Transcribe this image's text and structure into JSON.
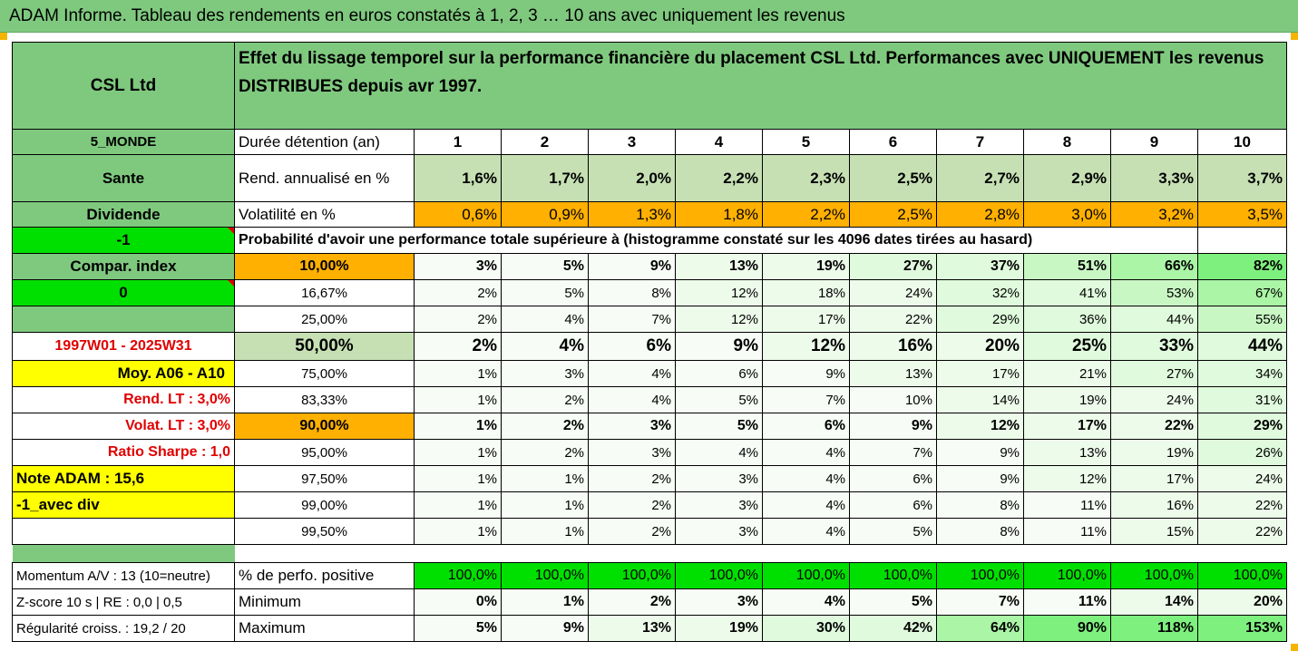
{
  "title": "ADAM Informe. Tableau des rendements en euros constatés à 1, 2, 3 … 10 ans avec uniquement les revenus",
  "left": {
    "company": "CSL Ltd",
    "region": "5_MONDE",
    "sector": "Sante",
    "income_type": "Dividende",
    "flag1": "-1",
    "compar_index": "Compar. index",
    "flag2": "0",
    "period": "1997W01 - 2025W31",
    "moy": "Moy. A06 - A10",
    "rend_lt": "Rend. LT :   3,0%",
    "volat_lt": "Volat. LT :   3,0%",
    "ratio_sharpe": "Ratio Sharpe :   1,0",
    "note_adam": "Note ADAM : 15,6",
    "avec_div": "-1_avec div",
    "momentum": "Momentum A/V : 13 (10=neutre)",
    "zscore": "Z-score 10 s  | RE : 0,0 | 0,5",
    "regularite": "Régularité croiss. : 19,2 / 20"
  },
  "description": "Effet du lissage temporel sur la performance financière du placement CSL Ltd. Performances avec UNIQUEMENT les revenus DISTRIBUES depuis avr 1997.",
  "labels": {
    "duree": "Durée détention (an)",
    "rend": "Rend. annualisé en %",
    "volat": "Volatilité en %",
    "proba": "Probabilité d'avoir une performance totale supérieure à (histogramme constaté sur les 4096 dates tirées au hasard)",
    "positive": "% de perfo. positive",
    "minimum": "Minimum",
    "maximum": "Maximum"
  },
  "years": [
    "1",
    "2",
    "3",
    "4",
    "5",
    "6",
    "7",
    "8",
    "9",
    "10"
  ],
  "rend": [
    "1,6%",
    "1,7%",
    "2,0%",
    "2,2%",
    "2,3%",
    "2,5%",
    "2,7%",
    "2,9%",
    "3,3%",
    "3,7%"
  ],
  "volat": [
    "0,6%",
    "0,9%",
    "1,3%",
    "1,8%",
    "2,2%",
    "2,5%",
    "2,8%",
    "3,0%",
    "3,2%",
    "3,5%"
  ],
  "prob_rows": [
    {
      "p": "10,00%",
      "v": [
        "3%",
        "5%",
        "9%",
        "13%",
        "19%",
        "27%",
        "37%",
        "51%",
        "66%",
        "82%"
      ]
    },
    {
      "p": "16,67%",
      "v": [
        "2%",
        "5%",
        "8%",
        "12%",
        "18%",
        "24%",
        "32%",
        "41%",
        "53%",
        "67%"
      ]
    },
    {
      "p": "25,00%",
      "v": [
        "2%",
        "4%",
        "7%",
        "12%",
        "17%",
        "22%",
        "29%",
        "36%",
        "44%",
        "55%"
      ]
    },
    {
      "p": "50,00%",
      "v": [
        "2%",
        "4%",
        "6%",
        "9%",
        "12%",
        "16%",
        "20%",
        "25%",
        "33%",
        "44%"
      ]
    },
    {
      "p": "75,00%",
      "v": [
        "1%",
        "3%",
        "4%",
        "6%",
        "9%",
        "13%",
        "17%",
        "21%",
        "27%",
        "34%"
      ]
    },
    {
      "p": "83,33%",
      "v": [
        "1%",
        "2%",
        "4%",
        "5%",
        "7%",
        "10%",
        "14%",
        "19%",
        "24%",
        "31%"
      ]
    },
    {
      "p": "90,00%",
      "v": [
        "1%",
        "2%",
        "3%",
        "5%",
        "6%",
        "9%",
        "12%",
        "17%",
        "22%",
        "29%"
      ]
    },
    {
      "p": "95,00%",
      "v": [
        "1%",
        "2%",
        "3%",
        "4%",
        "4%",
        "7%",
        "9%",
        "13%",
        "19%",
        "26%"
      ]
    },
    {
      "p": "97,50%",
      "v": [
        "1%",
        "1%",
        "2%",
        "3%",
        "4%",
        "6%",
        "9%",
        "12%",
        "17%",
        "24%"
      ]
    },
    {
      "p": "99,00%",
      "v": [
        "1%",
        "1%",
        "2%",
        "3%",
        "4%",
        "6%",
        "8%",
        "11%",
        "16%",
        "22%"
      ]
    },
    {
      "p": "99,50%",
      "v": [
        "1%",
        "1%",
        "2%",
        "3%",
        "4%",
        "5%",
        "8%",
        "11%",
        "15%",
        "22%"
      ]
    }
  ],
  "positive": [
    "100,0%",
    "100,0%",
    "100,0%",
    "100,0%",
    "100,0%",
    "100,0%",
    "100,0%",
    "100,0%",
    "100,0%",
    "100,0%"
  ],
  "minimum": [
    "0%",
    "1%",
    "2%",
    "3%",
    "4%",
    "5%",
    "7%",
    "11%",
    "14%",
    "20%"
  ],
  "maximum": [
    "5%",
    "9%",
    "13%",
    "19%",
    "30%",
    "42%",
    "64%",
    "90%",
    "118%",
    "153%"
  ],
  "colors": {
    "header_green": "#7fc97f",
    "light_green": "#c6e0b4",
    "orange": "#ffb000",
    "bright_green": "#00e000",
    "yellow": "#ffff00",
    "red_text": "#e00000"
  }
}
